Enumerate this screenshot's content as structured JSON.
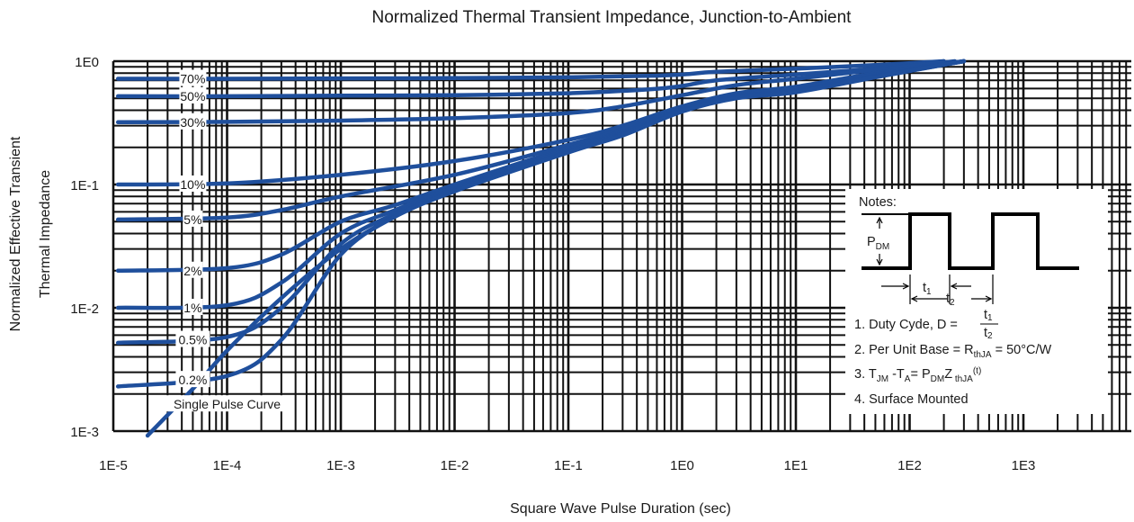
{
  "chart_data": {
    "type": "line",
    "title": "Normalized Thermal Transient Impedance, Junction-to-Ambient",
    "xlabel": "Square Wave Pulse Duration (sec)",
    "ylabel_line1": "Normalized Effective Transient",
    "ylabel_line2": "Thermal Impedance",
    "x_scale": "log",
    "y_scale": "log",
    "xlim": [
      1e-05,
      4000
    ],
    "ylim": [
      0.001,
      1
    ],
    "grid": true,
    "x_ticks": [
      {
        "value": 1e-05,
        "label": "1E-5"
      },
      {
        "value": 0.0001,
        "label": "1E-4"
      },
      {
        "value": 0.001,
        "label": "1E-3"
      },
      {
        "value": 0.01,
        "label": "1E-2"
      },
      {
        "value": 0.1,
        "label": "1E-1"
      },
      {
        "value": 1,
        "label": "1E0"
      },
      {
        "value": 10,
        "label": "1E1"
      },
      {
        "value": 100,
        "label": "1E2"
      },
      {
        "value": 1000,
        "label": "1E3"
      }
    ],
    "y_ticks": [
      {
        "value": 1,
        "label": "1E0"
      },
      {
        "value": 0.1,
        "label": "1E-1"
      },
      {
        "value": 0.01,
        "label": "1E-2"
      },
      {
        "value": 0.001,
        "label": "1E-3"
      }
    ],
    "series": [
      {
        "name": "70%",
        "points": [
          [
            1.1e-05,
            0.72
          ],
          [
            0.0001,
            0.72
          ],
          [
            0.001,
            0.725
          ],
          [
            0.01,
            0.73
          ],
          [
            0.1,
            0.74
          ],
          [
            0.5,
            0.76
          ],
          [
            1,
            0.78
          ],
          [
            2,
            0.82
          ],
          [
            10,
            0.87
          ],
          [
            50,
            0.93
          ],
          [
            200,
            1.0
          ]
        ]
      },
      {
        "name": "50%",
        "points": [
          [
            1.1e-05,
            0.52
          ],
          [
            0.0001,
            0.52
          ],
          [
            0.001,
            0.525
          ],
          [
            0.01,
            0.53
          ],
          [
            0.1,
            0.55
          ],
          [
            0.5,
            0.59
          ],
          [
            1,
            0.63
          ],
          [
            2,
            0.7
          ],
          [
            10,
            0.78
          ],
          [
            50,
            0.87
          ],
          [
            200,
            1.0
          ]
        ]
      },
      {
        "name": "30%",
        "points": [
          [
            1.1e-05,
            0.32
          ],
          [
            0.0001,
            0.322
          ],
          [
            0.001,
            0.33
          ],
          [
            0.01,
            0.345
          ],
          [
            0.1,
            0.38
          ],
          [
            0.3,
            0.43
          ],
          [
            1,
            0.53
          ],
          [
            3,
            0.64
          ],
          [
            10,
            0.72
          ],
          [
            50,
            0.85
          ],
          [
            250,
            1.0
          ]
        ]
      },
      {
        "name": "10%",
        "points": [
          [
            1.1e-05,
            0.1
          ],
          [
            0.0001,
            0.102
          ],
          [
            0.001,
            0.12
          ],
          [
            0.01,
            0.155
          ],
          [
            0.1,
            0.23
          ],
          [
            0.3,
            0.3
          ],
          [
            1,
            0.43
          ],
          [
            3,
            0.55
          ],
          [
            10,
            0.62
          ],
          [
            50,
            0.8
          ],
          [
            300,
            1.0
          ]
        ]
      },
      {
        "name": "5%",
        "points": [
          [
            1.1e-05,
            0.052
          ],
          [
            0.0001,
            0.054
          ],
          [
            0.0003,
            0.062
          ],
          [
            0.001,
            0.08
          ],
          [
            0.01,
            0.12
          ],
          [
            0.1,
            0.21
          ],
          [
            0.3,
            0.28
          ],
          [
            1,
            0.42
          ],
          [
            3,
            0.53
          ],
          [
            10,
            0.6
          ],
          [
            50,
            0.78
          ],
          [
            300,
            1.0
          ]
        ]
      },
      {
        "name": "2%",
        "points": [
          [
            1.1e-05,
            0.02
          ],
          [
            0.0001,
            0.021
          ],
          [
            0.0003,
            0.027
          ],
          [
            0.001,
            0.05
          ],
          [
            0.003,
            0.068
          ],
          [
            0.01,
            0.1
          ],
          [
            0.1,
            0.2
          ],
          [
            0.3,
            0.27
          ],
          [
            1,
            0.41
          ],
          [
            3,
            0.52
          ],
          [
            10,
            0.58
          ],
          [
            50,
            0.76
          ],
          [
            300,
            1.0
          ]
        ]
      },
      {
        "name": "1%",
        "points": [
          [
            1.1e-05,
            0.01
          ],
          [
            0.0001,
            0.0105
          ],
          [
            0.0003,
            0.016
          ],
          [
            0.001,
            0.04
          ],
          [
            0.003,
            0.062
          ],
          [
            0.01,
            0.095
          ],
          [
            0.1,
            0.195
          ],
          [
            0.3,
            0.265
          ],
          [
            1,
            0.405
          ],
          [
            3,
            0.515
          ],
          [
            10,
            0.575
          ],
          [
            50,
            0.755
          ],
          [
            300,
            1.0
          ]
        ]
      },
      {
        "name": "0.5%",
        "points": [
          [
            1.1e-05,
            0.0052
          ],
          [
            0.0001,
            0.0058
          ],
          [
            0.0003,
            0.01
          ],
          [
            0.001,
            0.033
          ],
          [
            0.003,
            0.058
          ],
          [
            0.01,
            0.092
          ],
          [
            0.1,
            0.19
          ],
          [
            0.3,
            0.26
          ],
          [
            1,
            0.4
          ],
          [
            3,
            0.51
          ],
          [
            10,
            0.57
          ],
          [
            50,
            0.75
          ],
          [
            300,
            1.0
          ]
        ]
      },
      {
        "name": "0.2%",
        "points": [
          [
            1.1e-05,
            0.0023
          ],
          [
            0.0001,
            0.0028
          ],
          [
            0.0003,
            0.0055
          ],
          [
            0.001,
            0.027
          ],
          [
            0.003,
            0.055
          ],
          [
            0.01,
            0.09
          ],
          [
            0.1,
            0.185
          ],
          [
            0.3,
            0.255
          ],
          [
            1,
            0.395
          ],
          [
            3,
            0.505
          ],
          [
            10,
            0.565
          ],
          [
            50,
            0.745
          ],
          [
            300,
            1.0
          ]
        ]
      },
      {
        "name": "Single Pulse Curve",
        "points": [
          [
            2e-05,
            0.00092
          ],
          [
            5e-05,
            0.0022
          ],
          [
            0.0001,
            0.0045
          ],
          [
            0.0003,
            0.012
          ],
          [
            0.001,
            0.03
          ],
          [
            0.003,
            0.055
          ],
          [
            0.01,
            0.088
          ],
          [
            0.1,
            0.182
          ],
          [
            0.3,
            0.25
          ],
          [
            1,
            0.39
          ],
          [
            3,
            0.5
          ],
          [
            10,
            0.56
          ],
          [
            50,
            0.74
          ],
          [
            300,
            1.0
          ]
        ]
      }
    ],
    "curve_labels": [
      {
        "text": "70%",
        "x": 5e-05,
        "y": 0.72
      },
      {
        "text": "50%",
        "x": 5e-05,
        "y": 0.52
      },
      {
        "text": "30%",
        "x": 5e-05,
        "y": 0.32
      },
      {
        "text": "10%",
        "x": 5e-05,
        "y": 0.1
      },
      {
        "text": "5%",
        "x": 5e-05,
        "y": 0.052
      },
      {
        "text": "2%",
        "x": 5e-05,
        "y": 0.02
      },
      {
        "text": "1%",
        "x": 5e-05,
        "y": 0.01
      },
      {
        "text": "0.5%",
        "x": 5e-05,
        "y": 0.0055
      },
      {
        "text": "0.2%",
        "x": 5e-05,
        "y": 0.0026
      },
      {
        "text": "Single Pulse Curve",
        "x": 0.0001,
        "y": 0.00165
      }
    ],
    "notes": {
      "heading": "Notes:",
      "pdm_p": "P",
      "pdm_sub": "DM",
      "t1_label": "t",
      "t1_sub": "1",
      "t2_label": "t",
      "t2_sub": "2",
      "note1": "1. Duty Cyde, D = ",
      "note1_num": "t",
      "note1_num_sub": "1",
      "note1_den": "t",
      "note1_den_sub": "2",
      "note2_a": "2. Per Unit Base = R",
      "note2_sub": "thJA",
      "note2_b": " = 50°C/W",
      "note3_a": "3. T",
      "note3_s1": "JM",
      "note3_b": " -T",
      "note3_s2": "A",
      "note3_c": "= P",
      "note3_s3": "DM",
      "note3_d": "Z",
      "note3_s4": " thJA",
      "note3_sup": "(t)",
      "note4": "4. Surface Mounted"
    },
    "colors": {
      "curve": "#1f4f9c",
      "grid": "#111111",
      "text": "#1a1a1a"
    }
  }
}
